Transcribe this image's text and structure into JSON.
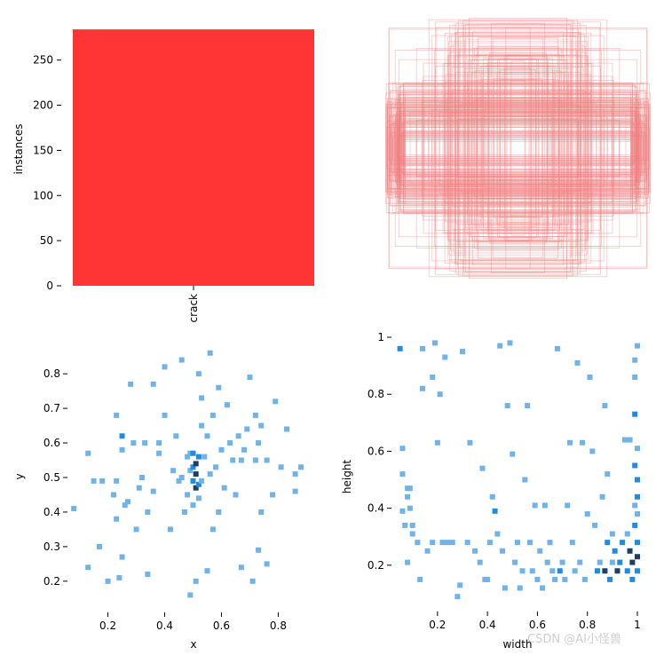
{
  "chart_data": [
    {
      "type": "bar",
      "categories": [
        "crack"
      ],
      "values": [
        284
      ],
      "title": "",
      "xlabel": "",
      "ylabel": "instances",
      "ylim": [
        0,
        290
      ],
      "yticks": [
        0,
        50,
        100,
        150,
        200,
        250
      ],
      "bar_color": "#ff2a2a"
    },
    {
      "type": "other",
      "title": "",
      "description_kind": "overlaid bounding boxes centred",
      "box_color": "#f08080",
      "axes_hidden": true
    },
    {
      "type": "heatmap",
      "xlabel": "x",
      "ylabel": "y",
      "xlim": [
        0.07,
        0.93
      ],
      "ylim": [
        0.12,
        0.88
      ],
      "xticks": [
        0.2,
        0.4,
        0.6,
        0.8
      ],
      "yticks": [
        0.2,
        0.3,
        0.4,
        0.5,
        0.6,
        0.7,
        0.8
      ],
      "color_light": "#6fb3e8",
      "color_mid": "#1f8ce0",
      "color_dark": "#1c3f66",
      "points": [
        [
          0.08,
          0.41,
          1
        ],
        [
          0.13,
          0.24,
          1
        ],
        [
          0.13,
          0.57,
          1
        ],
        [
          0.15,
          0.49,
          1
        ],
        [
          0.17,
          0.3,
          1
        ],
        [
          0.18,
          0.49,
          1
        ],
        [
          0.2,
          0.2,
          1
        ],
        [
          0.22,
          0.45,
          1
        ],
        [
          0.23,
          0.38,
          1
        ],
        [
          0.23,
          0.49,
          1
        ],
        [
          0.23,
          0.68,
          1
        ],
        [
          0.24,
          0.21,
          1
        ],
        [
          0.25,
          0.27,
          1
        ],
        [
          0.25,
          0.62,
          2
        ],
        [
          0.25,
          0.58,
          1
        ],
        [
          0.26,
          0.42,
          1
        ],
        [
          0.27,
          0.43,
          1
        ],
        [
          0.28,
          0.77,
          1
        ],
        [
          0.29,
          0.6,
          1
        ],
        [
          0.3,
          0.35,
          1
        ],
        [
          0.31,
          0.47,
          1
        ],
        [
          0.32,
          0.5,
          1
        ],
        [
          0.33,
          0.6,
          1
        ],
        [
          0.34,
          0.4,
          1
        ],
        [
          0.34,
          0.22,
          1
        ],
        [
          0.36,
          0.77,
          1
        ],
        [
          0.36,
          0.46,
          1
        ],
        [
          0.38,
          0.6,
          1
        ],
        [
          0.4,
          0.82,
          1
        ],
        [
          0.4,
          0.68,
          1
        ],
        [
          0.42,
          0.35,
          1
        ],
        [
          0.43,
          0.52,
          1
        ],
        [
          0.44,
          0.62,
          1
        ],
        [
          0.45,
          0.49,
          1
        ],
        [
          0.46,
          0.5,
          1
        ],
        [
          0.46,
          0.84,
          1
        ],
        [
          0.47,
          0.4,
          1
        ],
        [
          0.48,
          0.56,
          1
        ],
        [
          0.48,
          0.45,
          1
        ],
        [
          0.49,
          0.16,
          1
        ],
        [
          0.49,
          0.52,
          1
        ],
        [
          0.49,
          0.57,
          1
        ],
        [
          0.5,
          0.42,
          1
        ],
        [
          0.5,
          0.49,
          2
        ],
        [
          0.5,
          0.53,
          2
        ],
        [
          0.5,
          0.57,
          2
        ],
        [
          0.51,
          0.2,
          1
        ],
        [
          0.51,
          0.54,
          3
        ],
        [
          0.51,
          0.47,
          3
        ],
        [
          0.51,
          0.51,
          3
        ],
        [
          0.52,
          0.48,
          2
        ],
        [
          0.52,
          0.56,
          2
        ],
        [
          0.52,
          0.8,
          1
        ],
        [
          0.52,
          0.44,
          1
        ],
        [
          0.53,
          0.49,
          1
        ],
        [
          0.53,
          0.65,
          1
        ],
        [
          0.53,
          0.73,
          1
        ],
        [
          0.54,
          0.56,
          1
        ],
        [
          0.55,
          0.23,
          1
        ],
        [
          0.55,
          0.62,
          1
        ],
        [
          0.56,
          0.51,
          1
        ],
        [
          0.56,
          0.86,
          1
        ],
        [
          0.57,
          0.35,
          1
        ],
        [
          0.57,
          0.68,
          1
        ],
        [
          0.58,
          0.53,
          1
        ],
        [
          0.59,
          0.4,
          1
        ],
        [
          0.6,
          0.58,
          1
        ],
        [
          0.61,
          0.47,
          1
        ],
        [
          0.62,
          0.71,
          1
        ],
        [
          0.63,
          0.6,
          1
        ],
        [
          0.64,
          0.55,
          1
        ],
        [
          0.65,
          0.45,
          1
        ],
        [
          0.66,
          0.62,
          1
        ],
        [
          0.67,
          0.24,
          1
        ],
        [
          0.67,
          0.55,
          1
        ],
        [
          0.68,
          0.58,
          1
        ],
        [
          0.69,
          0.64,
          1
        ],
        [
          0.7,
          0.79,
          1
        ],
        [
          0.71,
          0.2,
          1
        ],
        [
          0.72,
          0.68,
          1
        ],
        [
          0.72,
          0.55,
          1
        ],
        [
          0.73,
          0.29,
          1
        ],
        [
          0.73,
          0.6,
          1
        ],
        [
          0.74,
          0.65,
          1
        ],
        [
          0.74,
          0.4,
          1
        ],
        [
          0.76,
          0.25,
          1
        ],
        [
          0.76,
          0.55,
          1
        ],
        [
          0.78,
          0.45,
          1
        ],
        [
          0.79,
          0.72,
          1
        ],
        [
          0.81,
          0.53,
          1
        ],
        [
          0.83,
          0.64,
          1
        ],
        [
          0.86,
          0.46,
          1
        ],
        [
          0.86,
          0.51,
          1
        ],
        [
          0.88,
          0.53,
          1
        ],
        [
          0.59,
          0.76,
          1
        ],
        [
          0.38,
          0.57,
          1
        ]
      ]
    },
    {
      "type": "heatmap",
      "xlabel": "width",
      "ylabel": "height",
      "xlim": [
        0.03,
        1.0
      ],
      "ylim": [
        0.05,
        1.0
      ],
      "xticks": [
        0.2,
        0.4,
        0.6,
        0.8,
        1.0
      ],
      "yticks": [
        0.2,
        0.4,
        0.6,
        0.8,
        1.0
      ],
      "color_light": "#6fb3e8",
      "color_mid": "#1f8ce0",
      "color_dark": "#1c3f66",
      "points": [
        [
          0.05,
          0.96,
          2
        ],
        [
          0.06,
          0.61,
          1
        ],
        [
          0.06,
          0.52,
          1
        ],
        [
          0.06,
          0.39,
          1
        ],
        [
          0.07,
          0.34,
          1
        ],
        [
          0.08,
          0.47,
          1
        ],
        [
          0.08,
          0.44,
          1
        ],
        [
          0.08,
          0.21,
          1
        ],
        [
          0.09,
          0.47,
          1
        ],
        [
          0.09,
          0.4,
          1
        ],
        [
          0.1,
          0.31,
          1
        ],
        [
          0.1,
          0.34,
          1
        ],
        [
          0.12,
          0.28,
          1
        ],
        [
          0.13,
          0.15,
          1
        ],
        [
          0.14,
          0.82,
          1
        ],
        [
          0.14,
          0.96,
          1
        ],
        [
          0.16,
          0.25,
          1
        ],
        [
          0.18,
          0.86,
          1
        ],
        [
          0.18,
          0.28,
          1
        ],
        [
          0.19,
          0.98,
          1
        ],
        [
          0.2,
          0.63,
          1
        ],
        [
          0.21,
          0.8,
          1
        ],
        [
          0.22,
          0.28,
          1
        ],
        [
          0.23,
          0.93,
          1
        ],
        [
          0.24,
          0.28,
          1
        ],
        [
          0.26,
          0.28,
          1
        ],
        [
          0.28,
          0.09,
          1
        ],
        [
          0.29,
          0.13,
          1
        ],
        [
          0.3,
          0.95,
          1
        ],
        [
          0.32,
          0.28,
          1
        ],
        [
          0.33,
          0.63,
          1
        ],
        [
          0.35,
          0.25,
          1
        ],
        [
          0.37,
          0.21,
          1
        ],
        [
          0.38,
          0.54,
          1
        ],
        [
          0.39,
          0.15,
          1
        ],
        [
          0.4,
          0.15,
          1
        ],
        [
          0.41,
          0.28,
          1
        ],
        [
          0.42,
          0.44,
          1
        ],
        [
          0.43,
          0.39,
          2
        ],
        [
          0.44,
          0.31,
          1
        ],
        [
          0.45,
          0.97,
          1
        ],
        [
          0.46,
          0.25,
          1
        ],
        [
          0.47,
          0.12,
          1
        ],
        [
          0.48,
          0.76,
          1
        ],
        [
          0.49,
          0.98,
          1
        ],
        [
          0.5,
          0.59,
          1
        ],
        [
          0.51,
          0.21,
          1
        ],
        [
          0.52,
          0.28,
          1
        ],
        [
          0.53,
          0.12,
          1
        ],
        [
          0.54,
          0.18,
          1
        ],
        [
          0.55,
          0.5,
          1
        ],
        [
          0.56,
          0.76,
          1
        ],
        [
          0.57,
          0.28,
          1
        ],
        [
          0.58,
          0.18,
          1
        ],
        [
          0.59,
          0.41,
          1
        ],
        [
          0.6,
          0.15,
          1
        ],
        [
          0.61,
          0.25,
          1
        ],
        [
          0.62,
          0.12,
          1
        ],
        [
          0.63,
          0.41,
          1
        ],
        [
          0.64,
          0.21,
          1
        ],
        [
          0.65,
          0.28,
          1
        ],
        [
          0.66,
          0.18,
          1
        ],
        [
          0.67,
          0.15,
          1
        ],
        [
          0.68,
          0.96,
          1
        ],
        [
          0.69,
          0.18,
          2
        ],
        [
          0.7,
          0.21,
          1
        ],
        [
          0.71,
          0.15,
          1
        ],
        [
          0.72,
          0.41,
          1
        ],
        [
          0.73,
          0.63,
          1
        ],
        [
          0.74,
          0.28,
          1
        ],
        [
          0.75,
          0.18,
          1
        ],
        [
          0.76,
          0.91,
          1
        ],
        [
          0.77,
          0.21,
          1
        ],
        [
          0.78,
          0.63,
          1
        ],
        [
          0.79,
          0.15,
          1
        ],
        [
          0.8,
          0.38,
          1
        ],
        [
          0.81,
          0.86,
          1
        ],
        [
          0.82,
          0.6,
          1
        ],
        [
          0.83,
          0.34,
          1
        ],
        [
          0.84,
          0.18,
          2
        ],
        [
          0.85,
          0.21,
          1
        ],
        [
          0.86,
          0.44,
          1
        ],
        [
          0.87,
          0.18,
          3
        ],
        [
          0.87,
          0.76,
          1
        ],
        [
          0.88,
          0.52,
          1
        ],
        [
          0.88,
          0.28,
          2
        ],
        [
          0.89,
          0.15,
          2
        ],
        [
          0.9,
          0.21,
          1
        ],
        [
          0.9,
          0.31,
          1
        ],
        [
          0.91,
          0.25,
          2
        ],
        [
          0.92,
          0.18,
          3
        ],
        [
          0.93,
          0.21,
          2
        ],
        [
          0.94,
          0.28,
          2
        ],
        [
          0.95,
          0.64,
          1
        ],
        [
          0.96,
          0.31,
          1
        ],
        [
          0.96,
          0.18,
          2
        ],
        [
          0.97,
          0.25,
          3
        ],
        [
          0.97,
          0.64,
          1
        ],
        [
          0.98,
          0.21,
          3
        ],
        [
          0.98,
          0.15,
          2
        ],
        [
          0.99,
          0.34,
          2
        ],
        [
          0.99,
          0.41,
          1
        ],
        [
          0.99,
          0.55,
          2
        ],
        [
          0.99,
          0.73,
          2
        ],
        [
          0.99,
          0.86,
          1
        ],
        [
          0.99,
          0.92,
          1
        ],
        [
          1.0,
          0.23,
          3
        ],
        [
          1.0,
          0.28,
          2
        ],
        [
          1.0,
          0.18,
          2
        ],
        [
          1.0,
          0.44,
          2
        ],
        [
          1.0,
          0.5,
          2
        ],
        [
          1.0,
          0.38,
          1
        ],
        [
          1.0,
          0.61,
          1
        ],
        [
          1.0,
          0.97,
          1
        ]
      ]
    }
  ],
  "watermark": "CSDN @AI小怪兽"
}
